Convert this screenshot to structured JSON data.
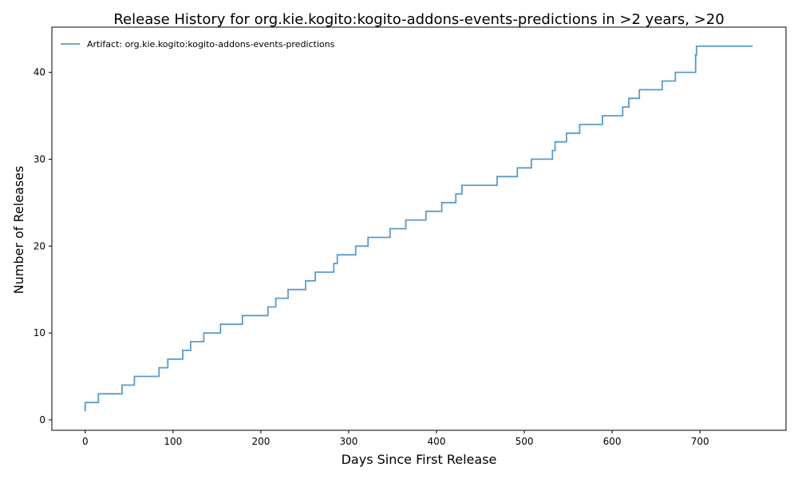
{
  "chart_data": {
    "type": "line",
    "title": "Release History for org.kie.kogito:kogito-addons-events-predictions in >2 years, >20",
    "xlabel": "Days Since First Release",
    "ylabel": "Number of Releases",
    "xlim": [
      -38,
      798
    ],
    "ylim": [
      -1.2,
      45.2
    ],
    "xticks": [
      0,
      100,
      200,
      300,
      400,
      500,
      600,
      700
    ],
    "yticks": [
      0,
      10,
      20,
      30,
      40
    ],
    "grid": false,
    "legend_position": "top-left",
    "step": "post",
    "series": [
      {
        "name": "Artifact: org.kie.kogito:kogito-addons-events-predictions",
        "color": "#5b9bc8",
        "x": [
          0,
          0,
          15,
          42,
          56,
          84,
          94,
          111,
          120,
          135,
          154,
          179,
          208,
          217,
          231,
          251,
          262,
          283,
          287,
          308,
          322,
          347,
          365,
          388,
          406,
          422,
          429,
          469,
          492,
          508,
          532,
          535,
          548,
          563,
          589,
          612,
          619,
          631,
          657,
          672,
          695,
          696,
          760
        ],
        "y": [
          1,
          2,
          3,
          4,
          5,
          6,
          7,
          8,
          9,
          10,
          11,
          12,
          13,
          14,
          15,
          16,
          17,
          18,
          19,
          20,
          21,
          22,
          23,
          24,
          25,
          26,
          27,
          28,
          29,
          30,
          31,
          32,
          33,
          34,
          35,
          36,
          37,
          38,
          39,
          40,
          42,
          43,
          43
        ]
      }
    ]
  }
}
